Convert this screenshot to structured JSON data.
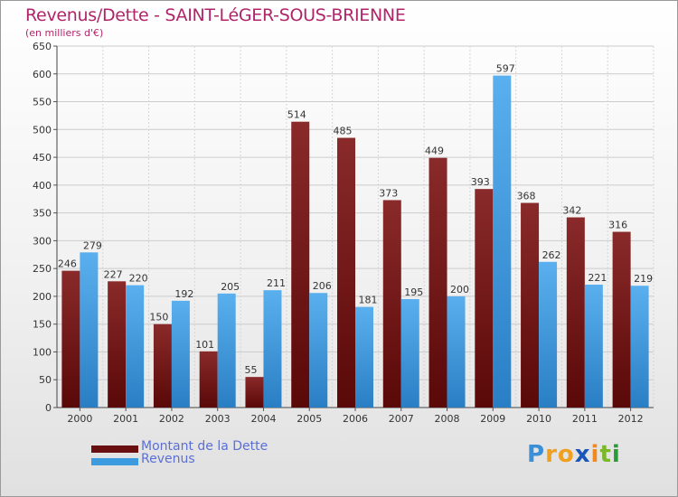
{
  "chart_data": {
    "type": "bar",
    "title": "Revenus/Dette - SAINT-LéGER-SOUS-BRIENNE",
    "subtitle": "(en milliers d'€)",
    "categories": [
      "2000",
      "2001",
      "2002",
      "2003",
      "2004",
      "2005",
      "2006",
      "2007",
      "2008",
      "2009",
      "2010",
      "2011",
      "2012"
    ],
    "series": [
      {
        "name": "Montant de la Dette",
        "color": "#7a1a1a",
        "values": [
          246,
          227,
          150,
          101,
          55,
          514,
          485,
          373,
          449,
          393,
          368,
          342,
          316
        ]
      },
      {
        "name": "Revenus",
        "color": "#3d9be0",
        "values": [
          279,
          220,
          192,
          205,
          211,
          206,
          181,
          195,
          200,
          597,
          262,
          221,
          219
        ]
      }
    ],
    "ylim": [
      0,
      650
    ],
    "yticks": [
      0,
      50,
      100,
      150,
      200,
      250,
      300,
      350,
      400,
      450,
      500,
      550,
      600,
      650
    ],
    "xlabel": "",
    "ylabel": "",
    "grid": true,
    "legend_position": "bottom-left"
  },
  "logo": {
    "letters": [
      "P",
      "r",
      "o",
      "x",
      "i",
      "t",
      "i"
    ],
    "colors": [
      "#3b8ed8",
      "#f0a020",
      "#f0a020",
      "#1a55b8",
      "#f08a20",
      "#7ab82a",
      "#2a9a3a"
    ]
  }
}
